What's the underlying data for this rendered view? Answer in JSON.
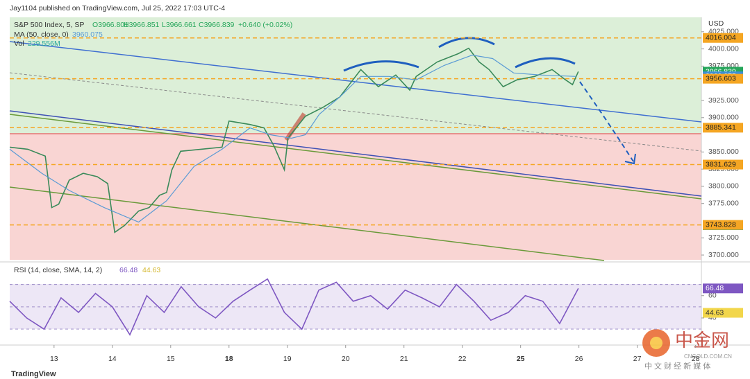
{
  "header": {
    "published": "Jay1104 published on TradingView.com, Jul 25, 2022 17:03 UTC-4",
    "footer": "TradingView",
    "watermark": [
      "中金网",
      "CNGOLD.COM.CN",
      "中 文 财 经 新 媒 体"
    ]
  },
  "chart_data": [
    {
      "type": "line",
      "currency": "USD",
      "legend_values": [
        "O3966.801",
        "H3966.851",
        "L3966.661",
        "C3966.839",
        "+0.640 (+0.02%)"
      ],
      "volume": {
        "name": "Vol",
        "label": "229.556M"
      },
      "xlim": [
        -0.76,
        11.1
      ],
      "ylim": [
        3693,
        4046
      ],
      "xticks": [
        {
          "value": 0,
          "label": "13"
        },
        {
          "value": 1,
          "label": "14"
        },
        {
          "value": 2,
          "label": "15"
        },
        {
          "value": 3,
          "label": "18",
          "bold": true
        },
        {
          "value": 4,
          "label": "19"
        },
        {
          "value": 5,
          "label": "20"
        },
        {
          "value": 6,
          "label": "21"
        },
        {
          "value": 7,
          "label": "22"
        },
        {
          "value": 8,
          "label": "25",
          "bold": true
        },
        {
          "value": 9,
          "label": "26"
        },
        {
          "value": 10,
          "label": "27"
        },
        {
          "value": 11,
          "label": "28"
        }
      ],
      "yticks": [
        {
          "value": 4025,
          "label": "4025.000"
        },
        {
          "value": 4000,
          "label": "4000.000"
        },
        {
          "value": 3975,
          "label": "3975.000"
        },
        {
          "value": 3925,
          "label": "3925.000"
        },
        {
          "value": 3900,
          "label": "3900.000"
        },
        {
          "value": 3850,
          "label": "3850.000"
        },
        {
          "value": 3825,
          "label": "3825.000"
        },
        {
          "value": 3800,
          "label": "3800.000"
        },
        {
          "value": 3775,
          "label": "3775.000"
        },
        {
          "value": 3725,
          "label": "3725.000"
        },
        {
          "value": 3700,
          "label": "3700.000"
        }
      ],
      "series": [
        {
          "name": "S&P 500 Index, 5, SP",
          "color": "#3a8a5a",
          "x": [
            -0.76,
            -0.45,
            -0.15,
            -0.04,
            0.08,
            0.26,
            0.5,
            0.74,
            0.92,
            1.04,
            1.21,
            1.45,
            1.63,
            1.81,
            1.93,
            2.02,
            2.17,
            2.52,
            2.88,
            3.0,
            3.36,
            3.6,
            3.77,
            3.95,
            4.01,
            4.31,
            4.61,
            4.9,
            5.08,
            5.26,
            5.56,
            5.86,
            6.1,
            6.21,
            6.57,
            6.93,
            7.11,
            7.29,
            7.46,
            7.7,
            7.94,
            8.24,
            8.54,
            8.77,
            8.89,
            8.99
          ],
          "values": [
            3857,
            3854,
            3844,
            3769,
            3774,
            3809,
            3819,
            3814,
            3804,
            3733,
            3743,
            3764,
            3769,
            3787,
            3791,
            3824,
            3851,
            3854,
            3857,
            3895,
            3890,
            3885,
            3859,
            3824,
            3870,
            3902,
            3915,
            3930,
            3950,
            3970,
            3945,
            3962,
            3940,
            3960,
            3981,
            3993,
            4001,
            3981,
            3970,
            3945,
            3955,
            3960,
            3970,
            3955,
            3948,
            3967
          ]
        },
        {
          "name": "MA (50, close, 0)",
          "color": "#5b9bd5",
          "last_value": 3960.075,
          "x": [
            -0.76,
            -0.21,
            0.26,
            0.86,
            1.45,
            1.93,
            2.4,
            2.88,
            3.36,
            3.71,
            4.07,
            4.31,
            4.55,
            4.9,
            5.26,
            5.74,
            6.21,
            6.69,
            7.17,
            7.52,
            7.88,
            8.36,
            8.95
          ],
          "values": [
            3854,
            3819,
            3794,
            3769,
            3748,
            3779,
            3829,
            3854,
            3885,
            3875,
            3870,
            3875,
            3905,
            3930,
            3960,
            3960,
            3955,
            3976,
            3991,
            3986,
            3965,
            3962,
            3960
          ]
        }
      ],
      "price_labels": [
        {
          "value": 4016.004,
          "color": "#f5a623",
          "dashed": true
        },
        {
          "value": 3966.839,
          "color": "#26a65b"
        },
        {
          "value": 3960.075,
          "color": "#3d8fd6"
        },
        {
          "value": 3956.603,
          "color": "#f5a623",
          "dashed": true
        },
        {
          "value": 3885.341,
          "color": "#f5a623",
          "dashed": true
        },
        {
          "value": 3831.629,
          "color": "#f5a623",
          "dashed": true
        },
        {
          "value": 3743.828,
          "color": "#f5a623",
          "dashed": true
        }
      ]
    },
    {
      "type": "line",
      "xlim": [
        -0.76,
        11.1
      ],
      "ylim": [
        17,
        89
      ],
      "yticks": [
        60,
        40
      ],
      "hlines": [
        70,
        50,
        30
      ],
      "series": [
        {
          "name": "RSI (14, close, SMA, 14, 2)",
          "color": "#7e57c2",
          "x": [
            -0.76,
            -0.47,
            -0.17,
            0.12,
            0.42,
            0.71,
            1.0,
            1.3,
            1.59,
            1.89,
            2.18,
            2.48,
            2.77,
            3.07,
            3.36,
            3.66,
            3.95,
            4.25,
            4.54,
            4.84,
            5.13,
            5.43,
            5.72,
            6.02,
            6.31,
            6.61,
            6.9,
            7.2,
            7.49,
            7.79,
            8.08,
            8.38,
            8.67,
            8.99
          ],
          "values": [
            55,
            40,
            30,
            58,
            45,
            62,
            50,
            25,
            60,
            45,
            68,
            50,
            40,
            55,
            65,
            75,
            45,
            30,
            65,
            72,
            55,
            60,
            48,
            65,
            58,
            50,
            70,
            55,
            38,
            45,
            60,
            55,
            35,
            66.48
          ]
        }
      ],
      "price_labels": [
        {
          "value": 66.48,
          "color": "#7e57c2"
        },
        {
          "value": 44.63,
          "color": "#f2d64b",
          "text_color": "#333"
        }
      ]
    }
  ]
}
